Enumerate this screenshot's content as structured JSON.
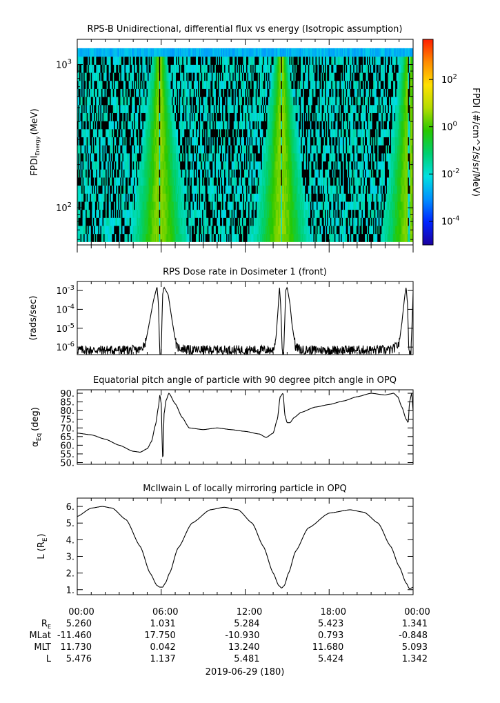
{
  "colors": {
    "axis": "#000000",
    "trace": "#000000",
    "background": "#ffffff",
    "colorbar_stops": [
      "#1b00a0",
      "#0024ff",
      "#0090ff",
      "#00e0e0",
      "#00d070",
      "#28c800",
      "#b4dc00",
      "#ffe000",
      "#ff8c00",
      "#ff1e00"
    ]
  },
  "chart_data": [
    {
      "type": "heatmap",
      "title": "RPS-B  Unidirectional, differential flux vs energy (Isotropic assumption)",
      "ylabel": {
        "main": "FPDI",
        "sub": "Energy",
        "unit": "(MeV)"
      },
      "yscale": "log",
      "ylim": [
        55,
        1500
      ],
      "y_ticks": [
        {
          "base": "10",
          "exp": "2",
          "value": 100
        },
        {
          "base": "10",
          "exp": "3",
          "value": 1000
        }
      ],
      "x_hours": [
        0,
        24
      ],
      "energy_channels_mev": [
        58,
        1300
      ],
      "colorbar": {
        "label": "FPDI (#/cm^2/s/sr/MeV)",
        "scale": "log",
        "range": [
          1e-05,
          5000
        ],
        "ticks": [
          {
            "base": "10",
            "exp": "2",
            "value": 100
          },
          {
            "base": "10",
            "exp": "0",
            "value": 1
          },
          {
            "base": "10",
            "exp": "-2",
            "value": 0.01
          },
          {
            "base": "10",
            "exp": "-4",
            "value": 0.0001
          }
        ]
      },
      "belt_passes_hours": [
        5.9,
        14.6,
        23.7
      ],
      "background_level": 0.01,
      "peak_level": 3
    },
    {
      "type": "line",
      "title": "RPS  Dose rate in Dosimeter 1 (front)",
      "ylabel": "(rads/sec)",
      "yscale": "log",
      "ylim": [
        4e-07,
        0.003
      ],
      "y_ticks": [
        {
          "base": "10",
          "exp": "-3",
          "value": 0.001
        },
        {
          "base": "10",
          "exp": "-4",
          "value": 0.0001
        },
        {
          "base": "10",
          "exp": "-5",
          "value": 1e-05
        },
        {
          "base": "10",
          "exp": "-6",
          "value": 1e-06
        }
      ],
      "x": [
        0,
        3,
        4.5,
        4.9,
        5.2,
        5.45,
        5.7,
        5.8,
        5.9,
        6.0,
        6.1,
        6.2,
        6.5,
        6.8,
        7.1,
        8,
        12,
        14,
        14.2,
        14.35,
        14.45,
        14.55,
        14.65,
        14.75,
        14.9,
        15.0,
        15.2,
        15.35,
        15.6,
        16,
        19,
        22.5,
        23.0,
        23.2,
        23.4,
        23.5,
        23.6,
        23.7,
        23.85,
        24
      ],
      "y": [
        7e-07,
        7e-07,
        7e-07,
        2e-06,
        3e-05,
        0.0003,
        0.0016,
        0.0002,
        5e-07,
        5e-07,
        0.0006,
        0.0015,
        0.0006,
        2e-05,
        1e-06,
        7e-07,
        7e-07,
        7e-07,
        3e-06,
        0.0001,
        0.0015,
        0.00012,
        5e-07,
        5e-07,
        0.001,
        0.0015,
        0.0002,
        1.5e-05,
        1e-06,
        7e-07,
        7e-07,
        7e-07,
        1.5e-06,
        2e-05,
        0.0005,
        0.0015,
        0.0002,
        5e-07,
        5e-07,
        0.0008
      ]
    },
    {
      "type": "line",
      "title": "Equatorial pitch angle of particle with 90 degree pitch angle in OPQ",
      "ylabel": {
        "main": "α",
        "sub": "Eq",
        "unit": "(deg)"
      },
      "ylim": [
        49,
        92
      ],
      "y_ticks": [
        "90.",
        "85.",
        "80.",
        "75.",
        "70.",
        "65.",
        "60.",
        "55.",
        "50."
      ],
      "x": [
        0,
        1,
        2,
        3,
        4,
        4.5,
        5.0,
        5.3,
        5.6,
        5.8,
        5.9,
        6.0,
        6.08,
        6.12,
        6.2,
        6.35,
        6.55,
        7,
        7.5,
        8,
        9,
        10,
        11,
        12,
        13,
        13.5,
        14,
        14.3,
        14.5,
        14.7,
        14.85,
        15.0,
        15.2,
        15.5,
        16,
        17,
        18,
        19,
        20,
        21,
        22,
        22.3,
        22.6,
        22.9,
        23.2,
        23.5,
        23.65,
        23.75,
        23.9,
        24
      ],
      "y": [
        67,
        66,
        63.5,
        60,
        56.5,
        56,
        58,
        62,
        72,
        82,
        89,
        84,
        60,
        49,
        78,
        86,
        90,
        84,
        76,
        70,
        69,
        70,
        69,
        68,
        66.5,
        64.5,
        67,
        75,
        88,
        90,
        77,
        73,
        73,
        76,
        79,
        82,
        83.5,
        85.5,
        88,
        90,
        89,
        89.5,
        90,
        88,
        82,
        75,
        73,
        85,
        90,
        80
      ]
    },
    {
      "type": "line",
      "title": "McIlwain L of locally mirroring particle in OPQ",
      "ylabel": {
        "main": "L (R",
        "sub": "E",
        "unit": ")"
      },
      "ylim": [
        0.7,
        6.5
      ],
      "y_ticks": [
        "6.",
        "5.",
        "4.",
        "3.",
        "2.",
        "1."
      ],
      "x": [
        0,
        1,
        1.8,
        2.5,
        3.5,
        4.5,
        5.2,
        5.7,
        5.9,
        6.1,
        6.3,
        6.6,
        7.2,
        8.2,
        9.5,
        10.5,
        11.5,
        12.5,
        13.3,
        14,
        14.4,
        14.6,
        14.8,
        15.1,
        15.6,
        16.5,
        18,
        19.5,
        20.5,
        21.5,
        22.4,
        23.0,
        23.5,
        23.75,
        24
      ],
      "y": [
        5.4,
        5.9,
        6.0,
        5.9,
        5.2,
        3.6,
        2.0,
        1.25,
        1.15,
        1.15,
        1.4,
        2.0,
        3.5,
        5.0,
        5.8,
        5.95,
        5.8,
        5.0,
        3.6,
        2.0,
        1.25,
        1.1,
        1.25,
        2.0,
        3.3,
        4.7,
        5.6,
        5.8,
        5.65,
        5.0,
        3.6,
        2.4,
        1.4,
        1.05,
        1.15
      ]
    }
  ],
  "time_axis": {
    "labels": [
      "00:00",
      "06:00",
      "12:00",
      "18:00",
      "00:00"
    ],
    "hours": [
      0,
      6,
      12,
      18,
      24
    ],
    "ephemeris": [
      {
        "label": "R",
        "sub": "E",
        "values": [
          "5.260",
          "1.031",
          "5.284",
          "5.423",
          "1.341"
        ]
      },
      {
        "label": "MLat",
        "values": [
          "-11.460",
          "17.750",
          "-10.930",
          "0.793",
          "-0.848"
        ]
      },
      {
        "label": "MLT",
        "values": [
          "11.730",
          "0.042",
          "13.240",
          "11.680",
          "5.093"
        ]
      },
      {
        "label": "L",
        "values": [
          "5.476",
          "1.137",
          "5.481",
          "5.424",
          "1.342"
        ]
      }
    ],
    "date_label": "2019-06-29 (180)"
  }
}
